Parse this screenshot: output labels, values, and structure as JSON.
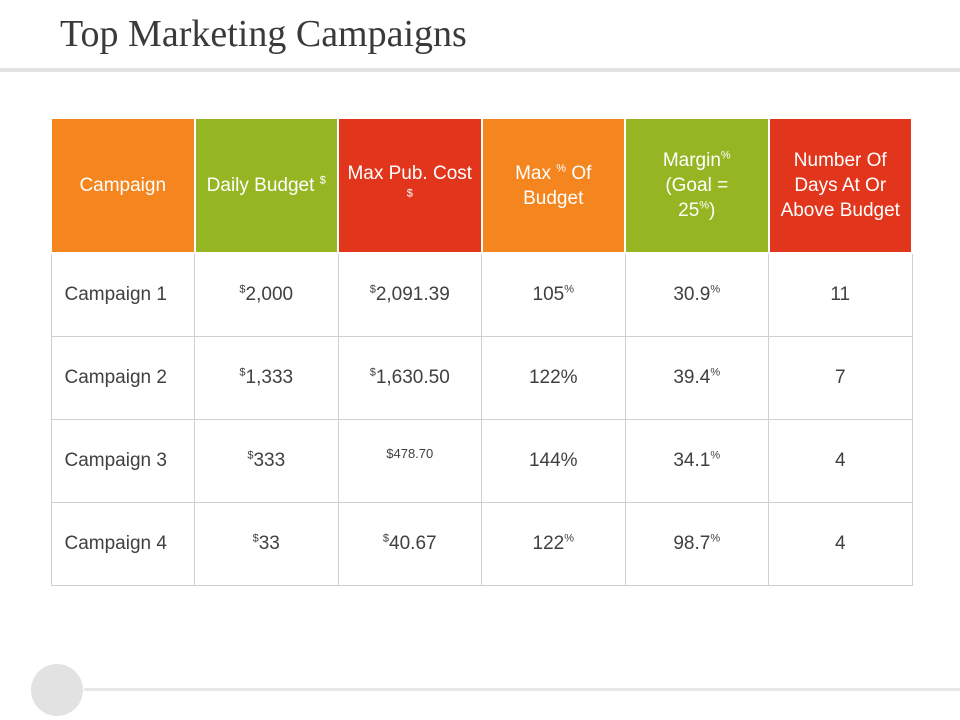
{
  "title": "Top Marketing Campaigns",
  "colors": {
    "orange": "#f5851e",
    "green": "#96b522",
    "red": "#e2361c"
  },
  "headers": {
    "campaign": "Campaign",
    "daily_budget": {
      "text": "Daily Budget",
      "sup": "$"
    },
    "max_pub_cost": {
      "text": "Max Pub. Cost",
      "sup": "$"
    },
    "max_of_budget": {
      "pre": "Max",
      "sup": "%",
      "post": "Of Budget"
    },
    "margin": {
      "pre": "Margin",
      "sup": "%",
      "goal_pre": "(Goal =",
      "goal_val": "25",
      "goal_sup": "%",
      "goal_post": ")"
    },
    "days_above": "Number Of Days At Or Above Budget"
  },
  "rows": [
    {
      "campaign": "Campaign 1",
      "budget_sym": "$",
      "budget": "2,000",
      "cost_sym": "$",
      "cost": "2,091.39",
      "pct_val": "105",
      "pct_sym": "%",
      "margin_val": "30.9",
      "margin_sym": "%",
      "days": "11"
    },
    {
      "campaign": "Campaign 2",
      "budget_sym": "$",
      "budget": "1,333",
      "cost_sym": "$",
      "cost": "1,630.50",
      "pct_val": "122%",
      "pct_sym": "",
      "margin_val": "39.4",
      "margin_sym": "%",
      "days": "7"
    },
    {
      "campaign": "Campaign 3",
      "budget_sym": "$",
      "budget": "333",
      "cost_sym": "",
      "cost": "$478.70",
      "pct_val": "144%",
      "pct_sym": "",
      "margin_val": "34.1",
      "margin_sym": "%",
      "days": "4"
    },
    {
      "campaign": "Campaign 4",
      "budget_sym": "$",
      "budget": "33",
      "cost_sym": "$",
      "cost": "40.67",
      "pct_val": "122",
      "pct_sym": "%",
      "margin_val": "98.7",
      "margin_sym": "%",
      "days": "4"
    }
  ]
}
